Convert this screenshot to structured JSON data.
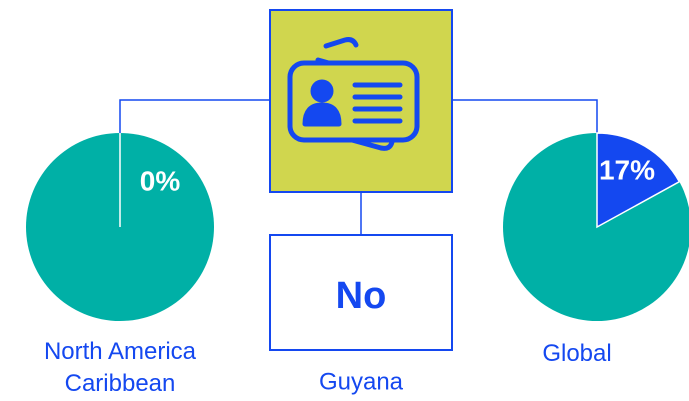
{
  "chart_data": [
    {
      "type": "pie",
      "label": "North America Caribbean",
      "value": 0,
      "value_label": "0%",
      "color": "#1448f0",
      "rest_color": "#00b0a6"
    },
    {
      "type": "pie",
      "label": "Global",
      "value": 17,
      "value_label": "17%",
      "color": "#1448f0",
      "rest_color": "#00b0a6"
    }
  ],
  "center": {
    "answer": "No",
    "label": "Guyana"
  }
}
